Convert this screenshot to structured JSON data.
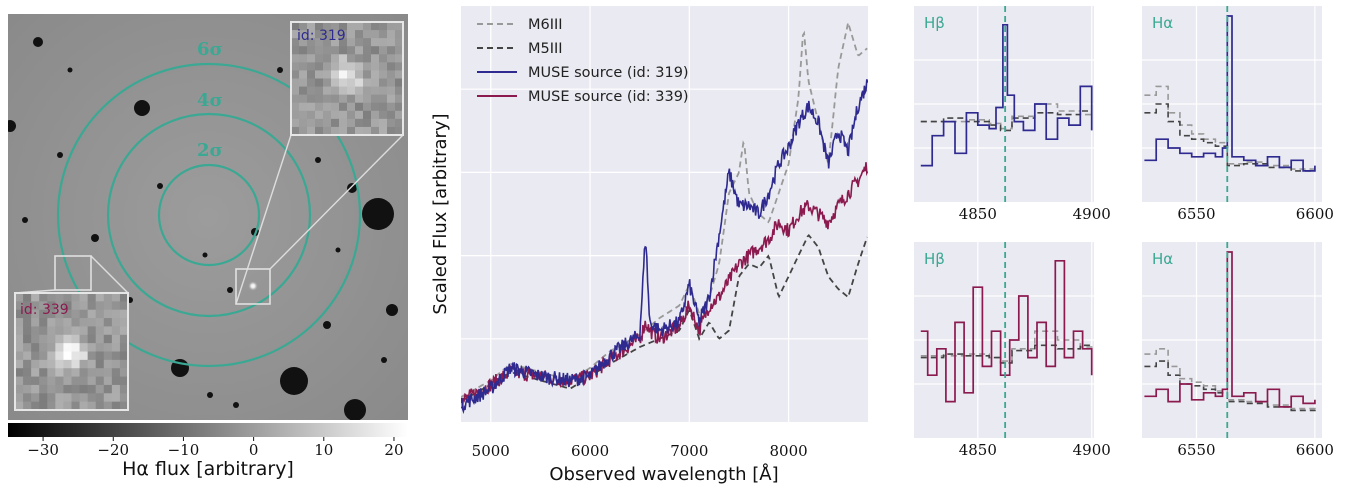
{
  "image_panel": {
    "sigma_labels": [
      "6σ",
      "4σ",
      "2σ"
    ],
    "inset_top_label": "id: 319",
    "inset_bottom_label": "id: 339",
    "colorbar_ticks": [
      -30,
      -20,
      -10,
      0,
      10,
      20
    ],
    "colorbar_tick_labels": [
      "−30",
      "−20",
      "−10",
      "0",
      "10",
      "20"
    ],
    "colorbar_label": "Hα flux [arbitrary]",
    "ring_color": "#3aa893"
  },
  "colors": {
    "source_319": "#2e2a8f",
    "source_339": "#8b1a4f",
    "m6iii": "#999999",
    "m5iii": "#444444",
    "line_marker": "#3aa893",
    "axes_bg": "#eaeaf2"
  },
  "chart_data": [
    {
      "type": "line",
      "xlabel": "Observed wavelength [Å]",
      "ylabel": "Scaled Flux [arbitrary]",
      "xlim": [
        4700,
        8800
      ],
      "ylim": [
        0,
        1
      ],
      "xticks": [
        5000,
        6000,
        7000,
        8000
      ],
      "grid": true,
      "legend_position": "top-left",
      "series": [
        {
          "name": "M6III",
          "style": "dashed",
          "x": [
            4700,
            5000,
            5200,
            5500,
            5800,
            6000,
            6200,
            6500,
            6700,
            6900,
            7000,
            7100,
            7200,
            7300,
            7400,
            7500,
            7550,
            7600,
            7700,
            7800,
            7900,
            8000,
            8100,
            8150,
            8200,
            8300,
            8400,
            8500,
            8600,
            8700,
            8800
          ],
          "y": [
            0.06,
            0.1,
            0.14,
            0.12,
            0.1,
            0.13,
            0.17,
            0.21,
            0.25,
            0.28,
            0.33,
            0.26,
            0.3,
            0.38,
            0.55,
            0.6,
            0.68,
            0.55,
            0.5,
            0.48,
            0.55,
            0.62,
            0.78,
            0.95,
            0.82,
            0.72,
            0.62,
            0.85,
            0.96,
            0.88,
            0.9
          ]
        },
        {
          "name": "M5III",
          "style": "dashed",
          "x": [
            4700,
            5000,
            5200,
            5500,
            5800,
            6000,
            6200,
            6500,
            6700,
            6900,
            7000,
            7100,
            7200,
            7300,
            7400,
            7500,
            7600,
            7700,
            7800,
            7900,
            8000,
            8100,
            8200,
            8300,
            8400,
            8500,
            8600,
            8700,
            8800
          ],
          "y": [
            0.05,
            0.09,
            0.12,
            0.1,
            0.08,
            0.11,
            0.14,
            0.18,
            0.2,
            0.22,
            0.27,
            0.2,
            0.24,
            0.2,
            0.22,
            0.35,
            0.38,
            0.37,
            0.4,
            0.3,
            0.35,
            0.4,
            0.45,
            0.42,
            0.35,
            0.32,
            0.3,
            0.38,
            0.45
          ]
        },
        {
          "name": "MUSE source (id: 319)",
          "style": "solid",
          "x": [
            4700,
            5000,
            5200,
            5500,
            5800,
            6000,
            6200,
            6500,
            6560,
            6600,
            6700,
            6900,
            7000,
            7100,
            7200,
            7300,
            7400,
            7500,
            7600,
            7700,
            7800,
            7900,
            8000,
            8100,
            8200,
            8300,
            8400,
            8500,
            8600,
            8700,
            8800
          ],
          "y": [
            0.04,
            0.08,
            0.13,
            0.11,
            0.1,
            0.11,
            0.16,
            0.21,
            0.45,
            0.24,
            0.22,
            0.24,
            0.33,
            0.24,
            0.3,
            0.45,
            0.6,
            0.52,
            0.52,
            0.5,
            0.55,
            0.62,
            0.66,
            0.72,
            0.76,
            0.72,
            0.62,
            0.7,
            0.65,
            0.76,
            0.82
          ]
        },
        {
          "name": "MUSE source (id: 339)",
          "style": "solid",
          "x": [
            4700,
            5000,
            5200,
            5500,
            5800,
            6000,
            6200,
            6500,
            6560,
            6600,
            6700,
            6900,
            7000,
            7100,
            7200,
            7300,
            7400,
            7500,
            7600,
            7700,
            7800,
            7900,
            8000,
            8100,
            8200,
            8300,
            8400,
            8500,
            8600,
            8700,
            8800
          ],
          "y": [
            0.05,
            0.09,
            0.12,
            0.11,
            0.1,
            0.11,
            0.15,
            0.2,
            0.24,
            0.22,
            0.2,
            0.23,
            0.28,
            0.22,
            0.28,
            0.3,
            0.34,
            0.38,
            0.4,
            0.42,
            0.44,
            0.48,
            0.46,
            0.5,
            0.52,
            0.5,
            0.48,
            0.52,
            0.55,
            0.58,
            0.62
          ]
        }
      ]
    },
    {
      "type": "line",
      "title": "Hβ",
      "source": "id: 319",
      "xlim": [
        4822,
        4901
      ],
      "xticks": [
        4850,
        4900
      ],
      "marker_x": 4862,
      "ylim": [
        0,
        1
      ],
      "series": [
        {
          "name": "MUSE source (id: 319)",
          "x": [
            4825,
            4830,
            4835,
            4840,
            4845,
            4850,
            4855,
            4858,
            4861,
            4863,
            4866,
            4870,
            4875,
            4880,
            4885,
            4890,
            4895,
            4900
          ],
          "y": [
            0.15,
            0.32,
            0.4,
            0.22,
            0.45,
            0.38,
            0.36,
            0.48,
            0.95,
            0.55,
            0.4,
            0.35,
            0.5,
            0.3,
            0.42,
            0.38,
            0.6,
            0.35
          ]
        },
        {
          "name": "M5III",
          "x": [
            4825,
            4835,
            4845,
            4855,
            4860,
            4865,
            4875,
            4885,
            4895,
            4900
          ],
          "y": [
            0.4,
            0.42,
            0.4,
            0.38,
            0.35,
            0.42,
            0.45,
            0.44,
            0.46,
            0.45
          ]
        },
        {
          "name": "M6III",
          "x": [
            4825,
            4835,
            4845,
            4855,
            4860,
            4865,
            4875,
            4885,
            4895,
            4900
          ],
          "y": [
            0.4,
            0.4,
            0.41,
            0.39,
            0.36,
            0.43,
            0.5,
            0.46,
            0.44,
            0.45
          ]
        }
      ]
    },
    {
      "type": "line",
      "title": "Hα",
      "source": "id: 319",
      "xlim": [
        6527,
        6603
      ],
      "xticks": [
        6550,
        6600
      ],
      "marker_x": 6563,
      "ylim": [
        0,
        1
      ],
      "series": [
        {
          "name": "MUSE source (id: 319)",
          "x": [
            6528,
            6533,
            6538,
            6543,
            6548,
            6553,
            6558,
            6561,
            6563,
            6565,
            6570,
            6575,
            6580,
            6585,
            6590,
            6595,
            6600
          ],
          "y": [
            0.18,
            0.3,
            0.25,
            0.22,
            0.2,
            0.22,
            0.2,
            0.25,
            1.0,
            0.2,
            0.18,
            0.15,
            0.2,
            0.14,
            0.18,
            0.12,
            0.15
          ]
        },
        {
          "name": "M5III",
          "x": [
            6528,
            6533,
            6538,
            6543,
            6548,
            6553,
            6558,
            6563,
            6570,
            6580,
            6590,
            6600
          ],
          "y": [
            0.45,
            0.5,
            0.4,
            0.32,
            0.3,
            0.28,
            0.26,
            0.15,
            0.16,
            0.14,
            0.12,
            0.12
          ]
        },
        {
          "name": "M6III",
          "x": [
            6528,
            6533,
            6538,
            6543,
            6548,
            6553,
            6558,
            6563,
            6570,
            6580,
            6590,
            6600
          ],
          "y": [
            0.55,
            0.6,
            0.45,
            0.38,
            0.33,
            0.3,
            0.28,
            0.16,
            0.17,
            0.15,
            0.13,
            0.13
          ]
        }
      ]
    },
    {
      "type": "line",
      "title": "Hβ",
      "source": "id: 339",
      "xlim": [
        4822,
        4901
      ],
      "xticks": [
        4850,
        4900
      ],
      "marker_x": 4862,
      "ylim": [
        0,
        1
      ],
      "series": [
        {
          "name": "MUSE source (id: 339)",
          "x": [
            4825,
            4828,
            4832,
            4836,
            4840,
            4844,
            4848,
            4852,
            4856,
            4860,
            4864,
            4868,
            4872,
            4876,
            4880,
            4884,
            4888,
            4892,
            4896,
            4900
          ],
          "y": [
            0.55,
            0.3,
            0.45,
            0.15,
            0.6,
            0.2,
            0.8,
            0.35,
            0.55,
            0.3,
            0.5,
            0.75,
            0.4,
            0.6,
            0.35,
            0.95,
            0.4,
            0.55,
            0.45,
            0.3
          ]
        },
        {
          "name": "M5III",
          "x": [
            4825,
            4835,
            4845,
            4855,
            4860,
            4865,
            4875,
            4885,
            4895,
            4900
          ],
          "y": [
            0.4,
            0.42,
            0.41,
            0.4,
            0.37,
            0.44,
            0.47,
            0.45,
            0.47,
            0.48
          ]
        },
        {
          "name": "M6III",
          "x": [
            4825,
            4835,
            4845,
            4855,
            4860,
            4865,
            4875,
            4885,
            4895,
            4900
          ],
          "y": [
            0.41,
            0.41,
            0.42,
            0.4,
            0.38,
            0.45,
            0.55,
            0.5,
            0.46,
            0.47
          ]
        }
      ]
    },
    {
      "type": "line",
      "title": "Hα",
      "source": "id: 339",
      "xlim": [
        6527,
        6603
      ],
      "xticks": [
        6550,
        6600
      ],
      "marker_x": 6563,
      "ylim": [
        0,
        1
      ],
      "series": [
        {
          "name": "MUSE source (id: 339)",
          "x": [
            6528,
            6533,
            6538,
            6543,
            6548,
            6553,
            6558,
            6561,
            6563,
            6565,
            6570,
            6575,
            6580,
            6585,
            6590,
            6595,
            6600
          ],
          "y": [
            0.18,
            0.22,
            0.15,
            0.25,
            0.16,
            0.2,
            0.18,
            0.22,
            1.0,
            0.18,
            0.2,
            0.15,
            0.22,
            0.12,
            0.18,
            0.14,
            0.16
          ]
        },
        {
          "name": "M5III",
          "x": [
            6528,
            6533,
            6538,
            6543,
            6548,
            6553,
            6558,
            6563,
            6570,
            6580,
            6590,
            6600
          ],
          "y": [
            0.35,
            0.38,
            0.3,
            0.25,
            0.24,
            0.22,
            0.2,
            0.15,
            0.14,
            0.12,
            0.1,
            0.08
          ]
        },
        {
          "name": "M6III",
          "x": [
            6528,
            6533,
            6538,
            6543,
            6548,
            6553,
            6558,
            6563,
            6570,
            6580,
            6590,
            6600
          ],
          "y": [
            0.42,
            0.45,
            0.35,
            0.28,
            0.26,
            0.24,
            0.21,
            0.16,
            0.15,
            0.13,
            0.11,
            0.09
          ]
        }
      ]
    }
  ]
}
